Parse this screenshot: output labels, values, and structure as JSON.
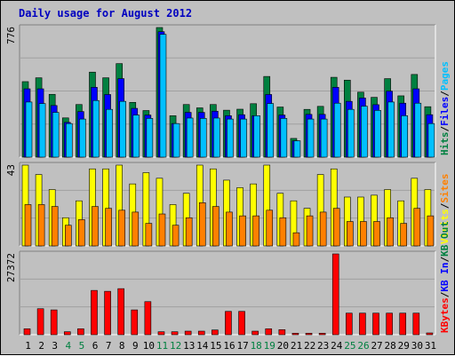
{
  "title": "Daily usage for August 2012",
  "colors": {
    "background": "#c0c0c0",
    "panel": "#c0c0c0",
    "grid": "#a0a0a0",
    "title": "#0000c0",
    "hits": "#008040",
    "files": "#0000ff",
    "pages": "#00c0ff",
    "visits": "#ffff00",
    "sites": "#ff8000",
    "kb_f": "#ff0000",
    "kb_in": "#0000ff",
    "kb_out": "#008040",
    "weekend_day": "#008040",
    "weekday": "#000000",
    "separator": "#000000"
  },
  "chart_data": [
    {
      "type": "bar",
      "title": "Daily usage for August 2012",
      "categories": [
        "1",
        "2",
        "3",
        "4",
        "5",
        "6",
        "7",
        "8",
        "9",
        "10",
        "11",
        "12",
        "13",
        "14",
        "15",
        "16",
        "17",
        "18",
        "19",
        "20",
        "21",
        "22",
        "23",
        "24",
        "25",
        "26",
        "27",
        "28",
        "29",
        "30",
        "31"
      ],
      "weekend_days": [
        "4",
        "5",
        "11",
        "12",
        "18",
        "19",
        "25",
        "26"
      ],
      "y_max_label": "776",
      "ylim": [
        0,
        776
      ],
      "legend": [
        {
          "label": "Hits",
          "color": "#008040"
        },
        {
          "label": "/",
          "color": "#000000"
        },
        {
          "label": "Files",
          "color": "#0000ff"
        },
        {
          "label": "/",
          "color": "#000000"
        },
        {
          "label": "Pages",
          "color": "#00c0ff"
        }
      ],
      "series": [
        {
          "name": "Hits",
          "color": "#008040",
          "values": [
            452,
            475,
            376,
            235,
            315,
            509,
            475,
            560,
            328,
            279,
            776,
            248,
            315,
            295,
            315,
            281,
            287,
            320,
            483,
            300,
            112,
            286,
            304,
            478,
            461,
            389,
            358,
            470,
            367,
            495,
            302
          ]
        },
        {
          "name": "Files",
          "color": "#0000ff",
          "values": [
            409,
            409,
            309,
            208,
            273,
            418,
            375,
            470,
            292,
            252,
            751,
            201,
            268,
            268,
            275,
            248,
            254,
            248,
            375,
            252,
            98,
            256,
            256,
            418,
            334,
            354,
            314,
            395,
            323,
            409,
            254
          ]
        },
        {
          "name": "Pages",
          "color": "#00c0ff",
          "values": [
            330,
            321,
            268,
            201,
            228,
            339,
            286,
            334,
            252,
            232,
            735,
            201,
            234,
            232,
            234,
            228,
            228,
            248,
            321,
            232,
            98,
            228,
            228,
            323,
            286,
            305,
            280,
            330,
            248,
            323,
            201
          ]
        }
      ]
    },
    {
      "type": "bar",
      "y_max_label": "43",
      "ylim": [
        0,
        43
      ],
      "legend": [
        {
          "label": "Visits",
          "color": "#ffff00"
        },
        {
          "label": "/",
          "color": "#000000"
        },
        {
          "label": "Sites",
          "color": "#ff8000"
        }
      ],
      "series": [
        {
          "name": "Visits",
          "color": "#ffff00",
          "values": [
            43,
            38,
            30,
            15,
            24,
            41,
            41,
            43,
            33,
            39,
            36,
            22,
            28,
            43,
            41,
            35,
            31,
            33,
            43,
            28,
            24,
            20,
            38,
            41,
            26,
            26,
            27,
            30,
            24,
            36,
            30
          ]
        },
        {
          "name": "Sites",
          "color": "#ff8000",
          "values": [
            22,
            22,
            21,
            11,
            14,
            21,
            20,
            19,
            18,
            12,
            17,
            11,
            15,
            23,
            21,
            18,
            16,
            16,
            19,
            15,
            7,
            16,
            18,
            20,
            13,
            13,
            13,
            15,
            12,
            20,
            16
          ]
        }
      ]
    },
    {
      "type": "bar",
      "y_max_label": "27372",
      "ylim": [
        0,
        27372
      ],
      "legend": [
        {
          "label": "KBytes",
          "color": "#ff0000"
        },
        {
          "label": "/",
          "color": "#000000"
        },
        {
          "label": "KB In",
          "color": "#0000ff"
        },
        {
          "label": "/",
          "color": "#000000"
        },
        {
          "label": "KB Out",
          "color": "#008040"
        }
      ],
      "series": [
        {
          "name": "KBytes",
          "color": "#ff0000",
          "values": [
            2000,
            8800,
            8400,
            1000,
            2000,
            15000,
            14700,
            15600,
            8400,
            11200,
            1000,
            1000,
            1200,
            1200,
            1600,
            7900,
            7900,
            1200,
            2000,
            1700,
            500,
            500,
            500,
            27372,
            7300,
            7300,
            7300,
            7300,
            7300,
            7300,
            600
          ]
        }
      ]
    }
  ]
}
